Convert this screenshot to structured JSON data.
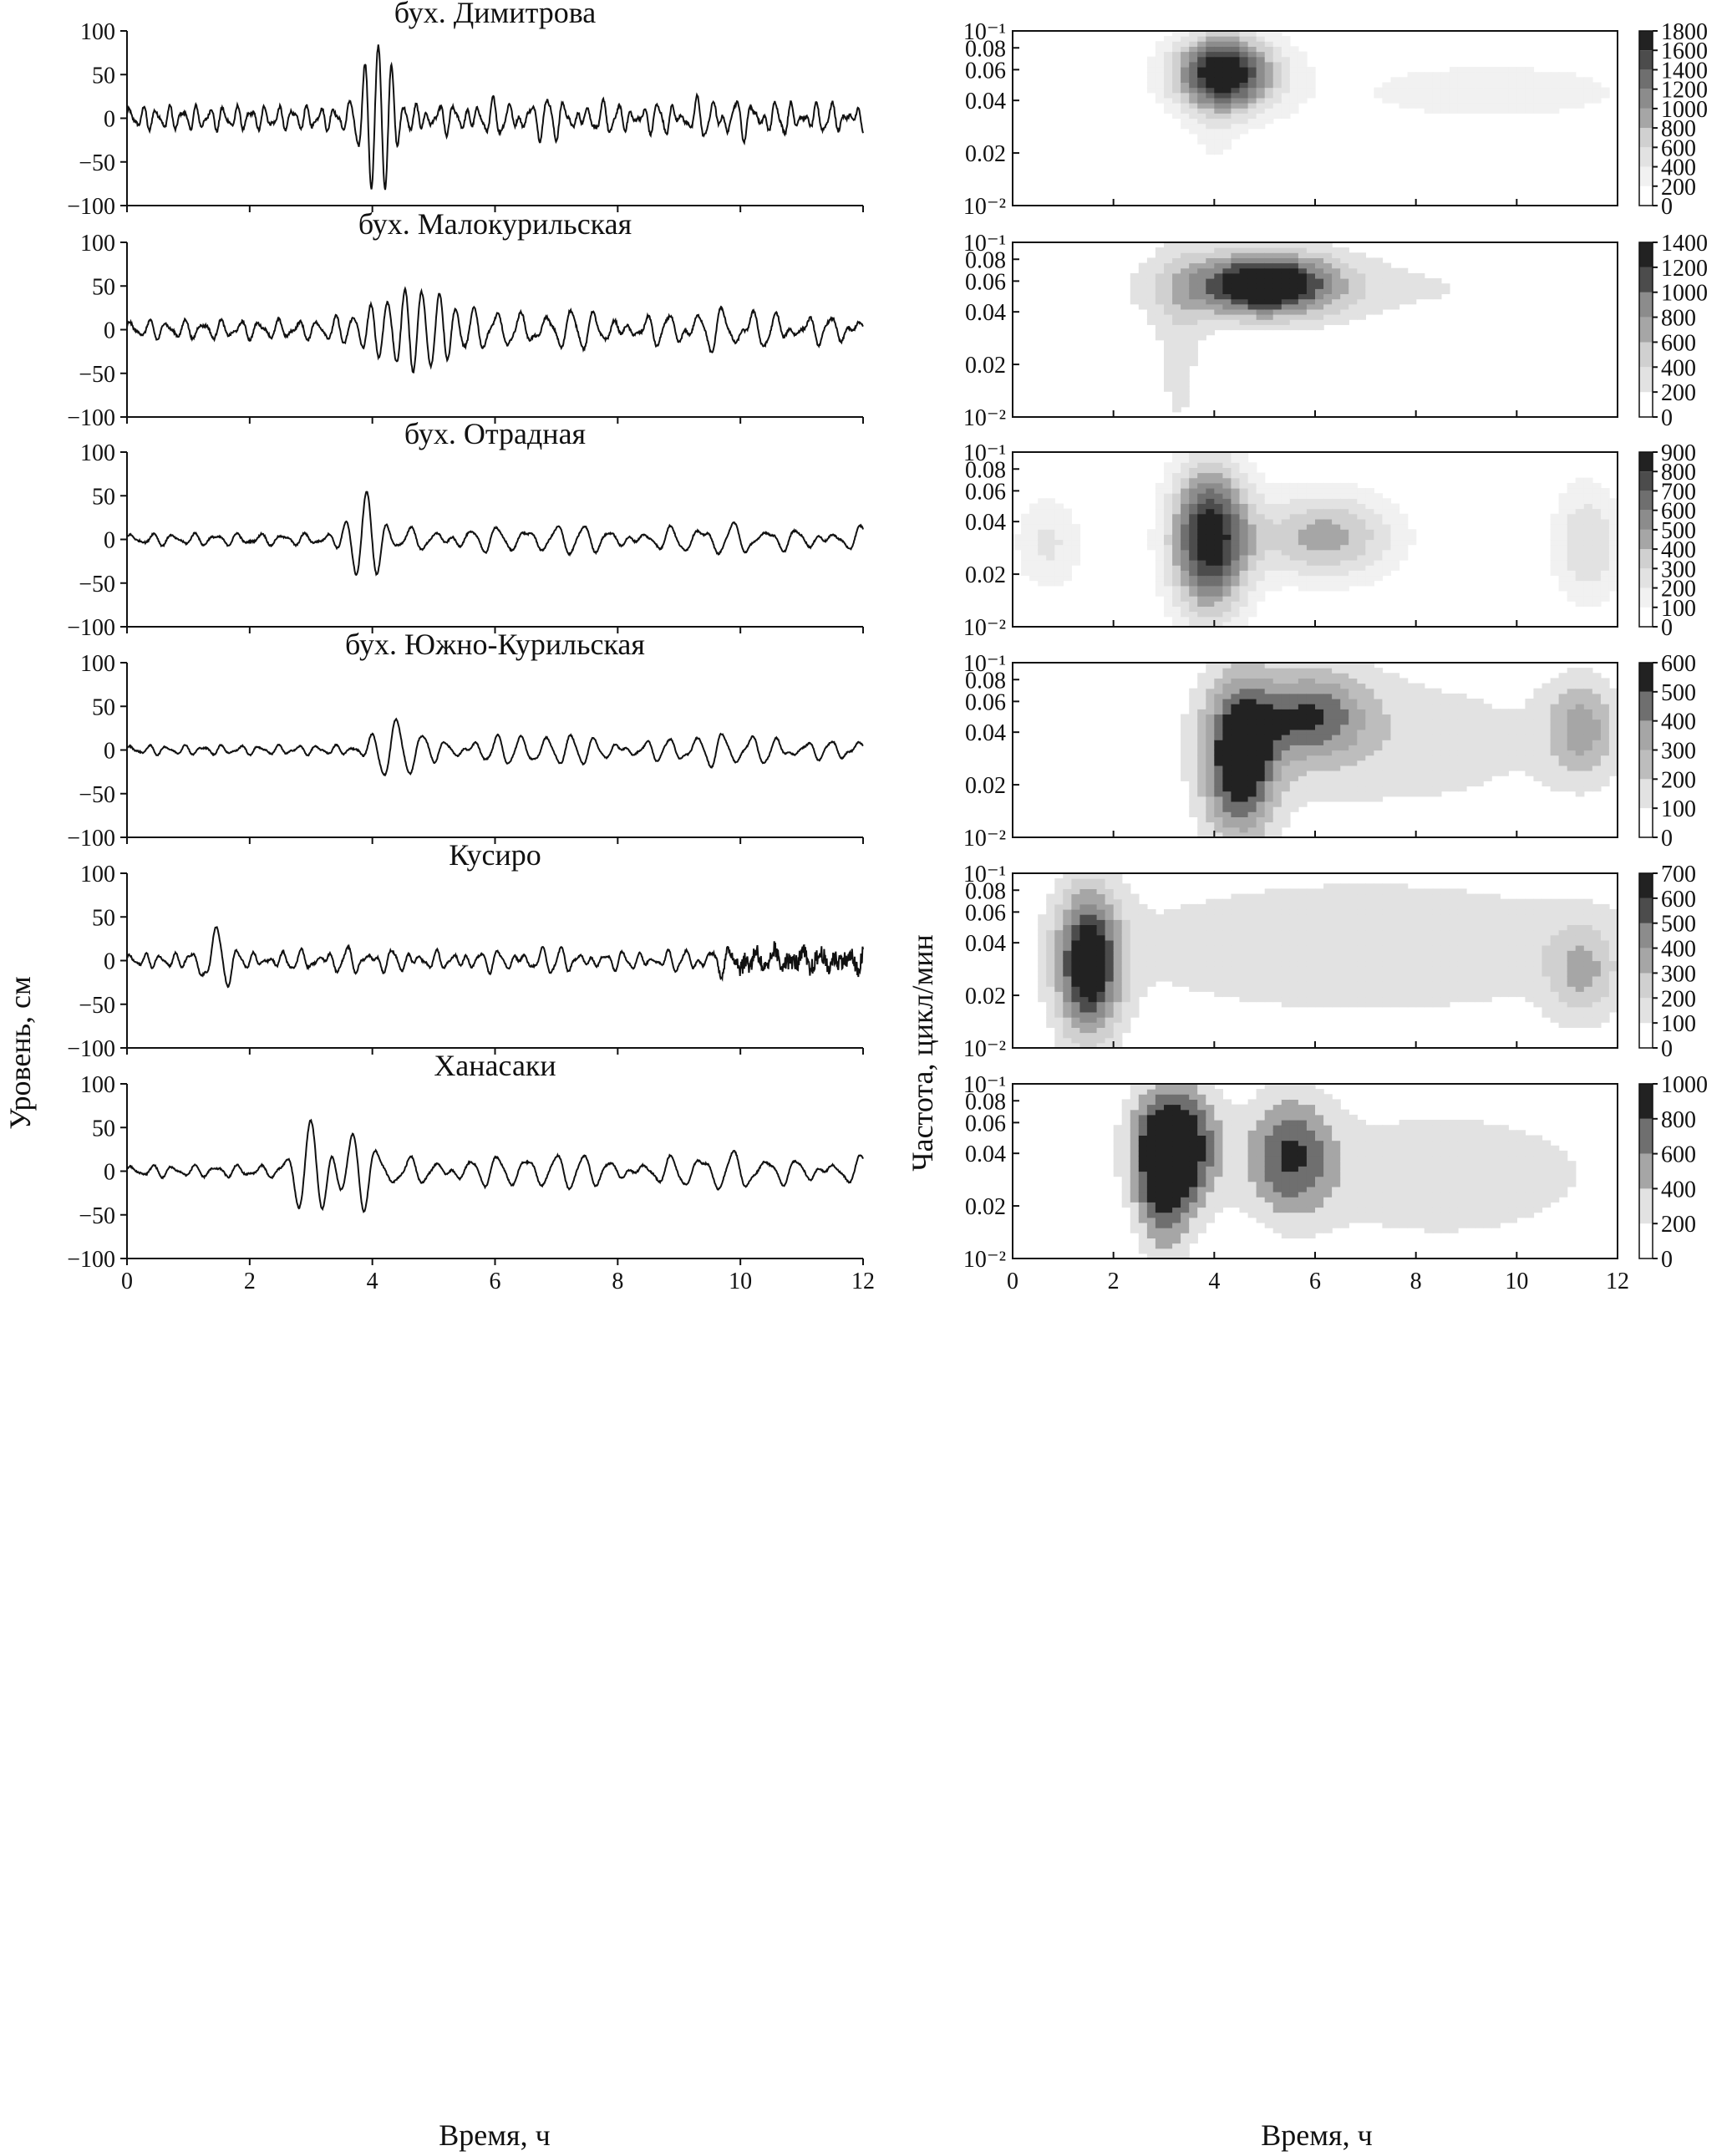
{
  "figure": {
    "ylabel_left": "Уровень, см",
    "ylabel_right": "Частота, цикл/мин",
    "xlabel_left": "Время, ч",
    "xlabel_right": "Время, ч"
  },
  "chart_data": [
    {
      "type": "line",
      "title": "бух. Димитрова",
      "xlabel": "Время, ч",
      "ylabel": "Уровень, см",
      "xlim": [
        0,
        12
      ],
      "ylim": [
        -100,
        100
      ],
      "xticks": [
        0,
        2,
        4,
        6,
        8,
        10,
        12
      ],
      "yticks": [
        -100,
        -50,
        0,
        50,
        100
      ],
      "signal": {
        "background_amp": 10,
        "bg_period_h": 0.22,
        "events": [
          {
            "t": 4.1,
            "amp": 90,
            "period_h": 0.22,
            "width_h": 0.35
          }
        ],
        "later_amp": 14
      }
    },
    {
      "type": "line",
      "title": "бух. Малокурильская",
      "xlabel": "Время, ч",
      "ylabel": "Уровень, см",
      "xlim": [
        0,
        12
      ],
      "ylim": [
        -100,
        100
      ],
      "xticks": [
        0,
        2,
        4,
        6,
        8,
        10,
        12
      ],
      "yticks": [
        -100,
        -50,
        0,
        50,
        100
      ],
      "signal": {
        "background_amp": 8,
        "bg_period_h": 0.3,
        "events": [
          {
            "t": 4.8,
            "amp": 45,
            "period_h": 0.28,
            "width_h": 0.9
          }
        ],
        "later_amp": 18
      }
    },
    {
      "type": "line",
      "title": "бух. Отрадная",
      "xlabel": "Время, ч",
      "ylabel": "Уровень, см",
      "xlim": [
        0,
        12
      ],
      "ylim": [
        -100,
        100
      ],
      "xticks": [
        0,
        2,
        4,
        6,
        8,
        10,
        12
      ],
      "yticks": [
        -100,
        -50,
        0,
        50,
        100
      ],
      "signal": {
        "background_amp": 5,
        "bg_period_h": 0.35,
        "events": [
          {
            "t": 3.9,
            "amp": 55,
            "period_h": 0.35,
            "width_h": 0.3
          }
        ],
        "later_amp": 14
      }
    },
    {
      "type": "line",
      "title": "бух. Южно-Курильская",
      "xlabel": "Время, ч",
      "ylabel": "Уровень, см",
      "xlim": [
        0,
        12
      ],
      "ylim": [
        -100,
        100
      ],
      "xticks": [
        0,
        2,
        4,
        6,
        8,
        10,
        12
      ],
      "yticks": [
        -100,
        -50,
        0,
        50,
        100
      ],
      "signal": {
        "background_amp": 4,
        "bg_period_h": 0.3,
        "events": [
          {
            "t": 4.4,
            "amp": 36,
            "period_h": 0.42,
            "width_h": 0.4
          }
        ],
        "later_amp": 16
      }
    },
    {
      "type": "line",
      "title": "Кусиро",
      "xlabel": "Время, ч",
      "ylabel": "Уровень, см",
      "xlim": [
        0,
        12
      ],
      "ylim": [
        -100,
        100
      ],
      "xticks": [
        0,
        2,
        4,
        6,
        8,
        10,
        12
      ],
      "yticks": [
        -100,
        -50,
        0,
        50,
        100
      ],
      "signal": {
        "background_amp": 6,
        "bg_period_h": 0.25,
        "events": [
          {
            "t": 1.45,
            "amp": 40,
            "period_h": 0.4,
            "width_h": 0.25
          }
        ],
        "later_amp": 9,
        "noise_tail": true
      }
    },
    {
      "type": "line",
      "title": "Ханасаки",
      "xlabel": "Время, ч",
      "ylabel": "Уровень, см",
      "xlim": [
        0,
        12
      ],
      "ylim": [
        -100,
        100
      ],
      "xticks": [
        0,
        2,
        4,
        6,
        8,
        10,
        12
      ],
      "yticks": [
        -100,
        -50,
        0,
        50,
        100
      ],
      "signal": {
        "background_amp": 5,
        "bg_period_h": 0.35,
        "events": [
          {
            "t": 3.0,
            "amp": 60,
            "period_h": 0.4,
            "width_h": 0.3
          },
          {
            "t": 3.7,
            "amp": 42,
            "period_h": 0.4,
            "width_h": 0.3
          }
        ],
        "later_amp": 18
      }
    },
    {
      "type": "heatmap",
      "title": "",
      "xlabel": "Время, ч",
      "ylabel": "Частота, цикл/мин",
      "xlim": [
        0,
        12
      ],
      "ylim": [
        0.01,
        0.1
      ],
      "yscale": "log",
      "xticks": [
        0,
        2,
        4,
        6,
        8,
        10,
        12
      ],
      "ytick_labels": [
        "10⁻²",
        "0.02",
        "0.04",
        "0.06",
        "0.08",
        "10⁻¹"
      ],
      "ytick_values": [
        0.01,
        0.02,
        0.04,
        0.06,
        0.08,
        0.1
      ],
      "colorbar_ticks": [
        0,
        200,
        400,
        600,
        800,
        1000,
        1200,
        1400,
        1600,
        1800
      ],
      "blobs": [
        {
          "t": 4.2,
          "f": 0.058,
          "sigma_t": 0.7,
          "sigma_f": 0.15,
          "value": 1800
        },
        {
          "t": 9.5,
          "f": 0.045,
          "sigma_t": 3.5,
          "sigma_f": 0.2,
          "value": 250
        },
        {
          "t": 4.0,
          "f": 0.02,
          "sigma_t": 0.4,
          "sigma_f": 0.5,
          "value": 180
        }
      ]
    },
    {
      "type": "heatmap",
      "title": "",
      "xlabel": "Время, ч",
      "ylabel": "Частота, цикл/мин",
      "xlim": [
        0,
        12
      ],
      "ylim": [
        0.01,
        0.1
      ],
      "yscale": "log",
      "xticks": [
        0,
        2,
        4,
        6,
        8,
        10,
        12
      ],
      "ytick_labels": [
        "10⁻²",
        "0.02",
        "0.04",
        "0.06",
        "0.08",
        "10⁻¹"
      ],
      "ytick_values": [
        0.01,
        0.02,
        0.04,
        0.06,
        0.08,
        0.1
      ],
      "colorbar_ticks": [
        0,
        200,
        400,
        600,
        800,
        1000,
        1200,
        1400
      ],
      "blobs": [
        {
          "t": 5.0,
          "f": 0.058,
          "sigma_t": 1.0,
          "sigma_f": 0.13,
          "value": 1400
        },
        {
          "t": 6.0,
          "f": 0.055,
          "sigma_t": 4.0,
          "sigma_f": 0.15,
          "value": 250
        },
        {
          "t": 3.3,
          "f": 0.025,
          "sigma_t": 0.4,
          "sigma_f": 0.5,
          "value": 260
        }
      ]
    },
    {
      "type": "heatmap",
      "title": "",
      "xlabel": "Время, ч",
      "ylabel": "Частота, цикл/мин",
      "xlim": [
        0,
        12
      ],
      "ylim": [
        0.01,
        0.1
      ],
      "yscale": "log",
      "xticks": [
        0,
        2,
        4,
        6,
        8,
        10,
        12
      ],
      "ytick_labels": [
        "10⁻²",
        "0.02",
        "0.04",
        "0.06",
        "0.08",
        "10⁻¹"
      ],
      "ytick_values": [
        0.01,
        0.02,
        0.04,
        0.06,
        0.08,
        0.1
      ],
      "colorbar_ticks": [
        0,
        100,
        200,
        300,
        400,
        500,
        600,
        700,
        800,
        900
      ],
      "blobs": [
        {
          "t": 3.9,
          "f": 0.032,
          "sigma_t": 0.55,
          "sigma_f": 0.3,
          "value": 900
        },
        {
          "t": 6.2,
          "f": 0.033,
          "sigma_t": 1.0,
          "sigma_f": 0.18,
          "value": 450
        },
        {
          "t": 11.4,
          "f": 0.03,
          "sigma_t": 0.5,
          "sigma_f": 0.25,
          "value": 300
        },
        {
          "t": 0.7,
          "f": 0.03,
          "sigma_t": 0.5,
          "sigma_f": 0.2,
          "value": 220
        }
      ]
    },
    {
      "type": "heatmap",
      "title": "",
      "xlabel": "Время, ч",
      "ylabel": "Частота, цикл/мин",
      "xlim": [
        0,
        12
      ],
      "ylim": [
        0.01,
        0.1
      ],
      "yscale": "log",
      "xticks": [
        0,
        2,
        4,
        6,
        8,
        10,
        12
      ],
      "ytick_labels": [
        "10⁻²",
        "0.02",
        "0.04",
        "0.06",
        "0.08",
        "10⁻¹"
      ],
      "ytick_values": [
        0.01,
        0.02,
        0.04,
        0.06,
        0.08,
        0.1
      ],
      "colorbar_ticks": [
        0,
        100,
        200,
        300,
        400,
        500,
        600
      ],
      "blobs": [
        {
          "t": 4.5,
          "f": 0.028,
          "sigma_t": 0.5,
          "sigma_f": 0.32,
          "value": 600
        },
        {
          "t": 5.9,
          "f": 0.05,
          "sigma_t": 0.8,
          "sigma_f": 0.18,
          "value": 400
        },
        {
          "t": 11.3,
          "f": 0.042,
          "sigma_t": 0.5,
          "sigma_f": 0.2,
          "value": 300
        },
        {
          "t": 7.5,
          "f": 0.035,
          "sigma_t": 3.0,
          "sigma_f": 0.35,
          "value": 150
        }
      ]
    },
    {
      "type": "heatmap",
      "title": "",
      "xlabel": "Время, ч",
      "ylabel": "Частота, цикл/мин",
      "xlim": [
        0,
        12
      ],
      "ylim": [
        0.01,
        0.1
      ],
      "yscale": "log",
      "xticks": [
        0,
        2,
        4,
        6,
        8,
        10,
        12
      ],
      "ytick_labels": [
        "10⁻²",
        "0.02",
        "0.04",
        "0.06",
        "0.08",
        "10⁻¹"
      ],
      "ytick_values": [
        0.01,
        0.02,
        0.04,
        0.06,
        0.08,
        0.1
      ],
      "colorbar_ticks": [
        0,
        100,
        200,
        300,
        400,
        500,
        600,
        700
      ],
      "blobs": [
        {
          "t": 1.5,
          "f": 0.03,
          "sigma_t": 0.45,
          "sigma_f": 0.3,
          "value": 700
        },
        {
          "t": 7.0,
          "f": 0.038,
          "sigma_t": 4.0,
          "sigma_f": 0.3,
          "value": 200
        },
        {
          "t": 11.3,
          "f": 0.027,
          "sigma_t": 0.5,
          "sigma_f": 0.2,
          "value": 250
        }
      ]
    },
    {
      "type": "heatmap",
      "title": "",
      "xlabel": "Время, ч",
      "ylabel": "Частота, цикл/мин",
      "xlim": [
        0,
        12
      ],
      "ylim": [
        0.01,
        0.1
      ],
      "yscale": "log",
      "xticks": [
        0,
        2,
        4,
        6,
        8,
        10,
        12
      ],
      "ytick_labels": [
        "10⁻²",
        "0.02",
        "0.04",
        "0.06",
        "0.08",
        "10⁻¹"
      ],
      "ytick_values": [
        0.01,
        0.02,
        0.04,
        0.06,
        0.08,
        0.1
      ],
      "colorbar_ticks": [
        0,
        200,
        400,
        600,
        800,
        1000
      ],
      "blobs": [
        {
          "t": 3.2,
          "f": 0.045,
          "sigma_t": 0.6,
          "sigma_f": 0.25,
          "value": 1100
        },
        {
          "t": 5.5,
          "f": 0.04,
          "sigma_t": 0.6,
          "sigma_f": 0.25,
          "value": 700
        },
        {
          "t": 3.0,
          "f": 0.022,
          "sigma_t": 0.4,
          "sigma_f": 0.3,
          "value": 500
        },
        {
          "t": 8.5,
          "f": 0.03,
          "sigma_t": 2.5,
          "sigma_f": 0.3,
          "value": 350
        }
      ]
    }
  ]
}
